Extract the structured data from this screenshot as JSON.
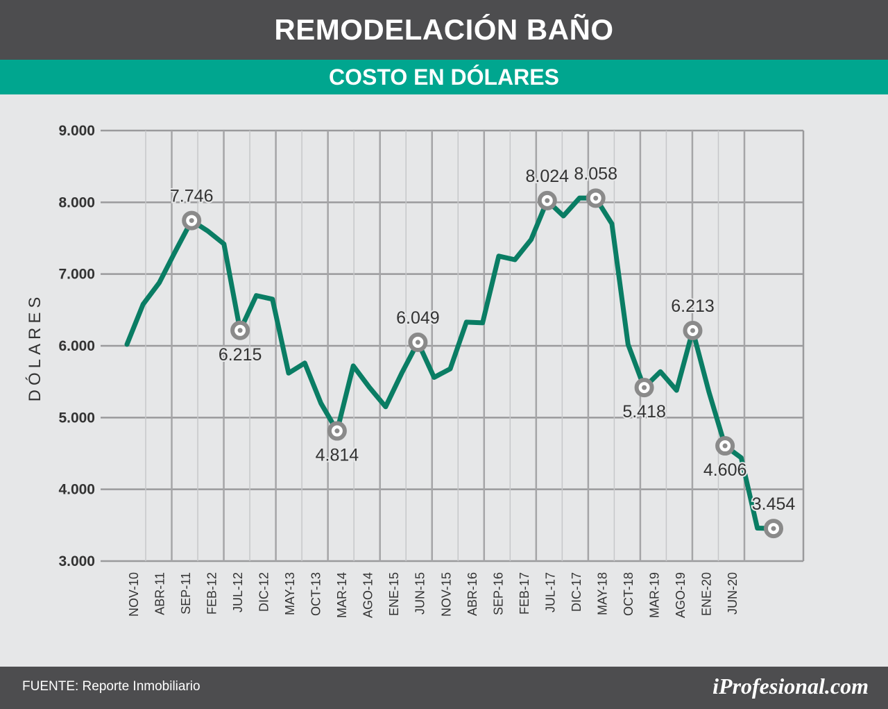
{
  "header": {
    "title": "REMODELACIÓN BAÑO",
    "subtitle": "COSTO EN DÓLARES"
  },
  "footer": {
    "source": "FUENTE: Reporte Inmobiliario",
    "logo": "iProfesional.com"
  },
  "colors": {
    "line": "#0a7d64",
    "accent": "#00a68f",
    "bar": "#4d4d4f",
    "marker": "#8a8a8a"
  },
  "chart_data": {
    "type": "line",
    "title": "REMODELACIÓN BAÑO",
    "subtitle": "COSTO EN DÓLARES",
    "xlabel": "",
    "ylabel": "DÓLARES",
    "ylim": [
      3000,
      9000
    ],
    "yticks": [
      3000,
      4000,
      5000,
      6000,
      7000,
      8000,
      9000
    ],
    "ytick_labels": [
      "3.000",
      "4.000",
      "5.000",
      "6.000",
      "7.000",
      "8.000",
      "9.000"
    ],
    "grid": true,
    "legend": "none",
    "x_tick_labels": [
      "NOV-10",
      "ABR-11",
      "SEP-11",
      "FEB-12",
      "JUL-12",
      "DIC-12",
      "MAY-13",
      "OCT-13",
      "MAR-14",
      "AGO-14",
      "ENE-15",
      "JUN-15",
      "NOV-15",
      "ABR-16",
      "SEP-16",
      "FEB-17",
      "JUL-17",
      "DIC-17",
      "MAY-18",
      "OCT-18",
      "MAR-19",
      "AGO-19",
      "ENE-20",
      "JUN-20"
    ],
    "series": [
      {
        "values": [
          6020,
          6580,
          6880,
          7320,
          7746,
          7600,
          7420,
          6215,
          6700,
          6650,
          5620,
          5760,
          5200,
          4814,
          5720,
          5420,
          5150,
          5620,
          6049,
          5560,
          5680,
          6330,
          6320,
          7250,
          7200,
          7480,
          8024,
          7810,
          8060,
          8058,
          7700,
          6020,
          5418,
          5640,
          5380,
          6213,
          5360,
          4606,
          4440,
          3460,
          3454
        ]
      }
    ],
    "annotations": [
      {
        "index": 4,
        "label": "7.746",
        "position": "above"
      },
      {
        "index": 7,
        "label": "6.215",
        "position": "below"
      },
      {
        "index": 13,
        "label": "4.814",
        "position": "below"
      },
      {
        "index": 18,
        "label": "6.049",
        "position": "above"
      },
      {
        "index": 26,
        "label": "8.024",
        "position": "above"
      },
      {
        "index": 29,
        "label": "8.058",
        "position": "above"
      },
      {
        "index": 32,
        "label": "5.418",
        "position": "below"
      },
      {
        "index": 35,
        "label": "6.213",
        "position": "above"
      },
      {
        "index": 37,
        "label": "4.606",
        "position": "below"
      },
      {
        "index": 40,
        "label": "3.454",
        "position": "above"
      }
    ]
  }
}
